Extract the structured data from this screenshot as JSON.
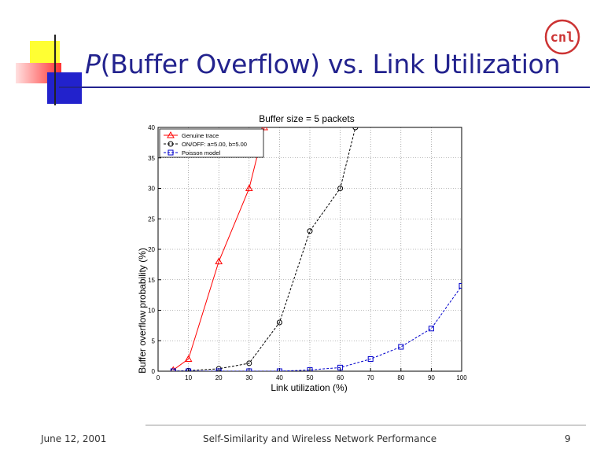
{
  "slide": {
    "title_prefix": "P",
    "title_rest": "(Buffer Overflow) vs. Link Utilization",
    "logo_text": "cnl",
    "footer_left": "June 12, 2001",
    "footer_center": "Self-Similarity and Wireless Network Performance",
    "footer_right": "9"
  },
  "colors": {
    "title": "#23238e",
    "accent_yellow": "#ffff33",
    "accent_red": "#ff4444",
    "accent_blue": "#2222cc",
    "logo": "#cc3333"
  },
  "chart_data": {
    "type": "line",
    "title": "Buffer size = 5 packets",
    "xlabel": "Link utilization (%)",
    "ylabel": "Buffer overflow probability (%)",
    "xlim": [
      0,
      100
    ],
    "ylim": [
      0,
      40
    ],
    "xticks": [
      0,
      10,
      20,
      30,
      40,
      50,
      60,
      70,
      80,
      90,
      100
    ],
    "yticks": [
      0,
      5,
      10,
      15,
      20,
      25,
      30,
      35,
      40
    ],
    "grid": true,
    "legend_position": "top-left",
    "series": [
      {
        "name": "Genuine trace",
        "color": "#ff0000",
        "marker": "triangle",
        "dash": "solid",
        "x": [
          5,
          10,
          20,
          30,
          35
        ],
        "y": [
          0.2,
          2,
          18,
          30,
          40
        ]
      },
      {
        "name": "ON/OFF: a=5.00, b=5.00",
        "color": "#000000",
        "marker": "circle",
        "dash": "dashed",
        "x": [
          5,
          10,
          20,
          30,
          40,
          50,
          60,
          65
        ],
        "y": [
          0,
          0.1,
          0.4,
          1.3,
          8,
          23,
          30,
          40
        ]
      },
      {
        "name": "Poisson model",
        "color": "#0000cc",
        "marker": "square",
        "dash": "dashed",
        "x": [
          5,
          10,
          20,
          30,
          40,
          50,
          60,
          70,
          80,
          90,
          100
        ],
        "y": [
          0,
          0,
          0,
          0,
          0,
          0.2,
          0.6,
          2,
          4,
          7,
          14
        ]
      }
    ]
  }
}
